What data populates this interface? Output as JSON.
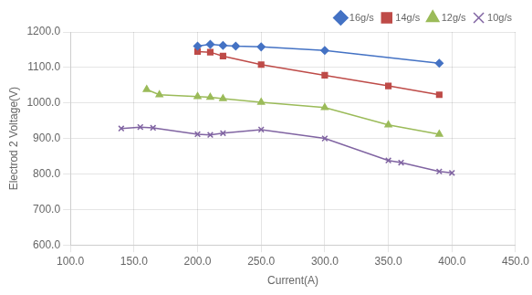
{
  "chart_data": {
    "type": "line",
    "xlabel": "Current(A)",
    "ylabel": "Electrod 2 Voltage(V)",
    "series": [
      {
        "name": "16g/s",
        "color": "#4472C4",
        "marker": "diamond",
        "x": [
          200,
          210,
          220,
          230,
          250,
          300,
          390
        ],
        "values": [
          1160,
          1165,
          1162,
          1160,
          1158,
          1148,
          1112
        ]
      },
      {
        "name": "14g/s",
        "color": "#BE4B48",
        "marker": "square",
        "x": [
          200,
          210,
          220,
          250,
          300,
          350,
          390
        ],
        "values": [
          1145,
          1143,
          1132,
          1108,
          1078,
          1048,
          1023
        ]
      },
      {
        "name": "12g/s",
        "color": "#9BBB59",
        "marker": "triangle",
        "x": [
          160,
          170,
          200,
          210,
          220,
          250,
          300,
          350,
          390
        ],
        "values": [
          1038,
          1023,
          1018,
          1016,
          1012,
          1002,
          987,
          938,
          912
        ]
      },
      {
        "name": "10g/s",
        "color": "#8064A2",
        "marker": "x",
        "x": [
          140,
          155,
          165,
          200,
          210,
          220,
          250,
          300,
          350,
          360,
          390,
          400
        ],
        "values": [
          928,
          932,
          930,
          912,
          910,
          915,
          925,
          900,
          838,
          832,
          807,
          803
        ]
      }
    ],
    "xlim": [
      100,
      450
    ],
    "ylim": [
      600,
      1200
    ],
    "xticks": [
      {
        "value": 100,
        "label": "100.0"
      },
      {
        "value": 150,
        "label": "150.0"
      },
      {
        "value": 200,
        "label": "200.0"
      },
      {
        "value": 250,
        "label": "250.0"
      },
      {
        "value": 300,
        "label": "300.0"
      },
      {
        "value": 350,
        "label": "350.0"
      },
      {
        "value": 400,
        "label": "400.0"
      },
      {
        "value": 450,
        "label": "450.0"
      }
    ],
    "yticks": [
      {
        "value": 600,
        "label": "600.0"
      },
      {
        "value": 700,
        "label": "700.0"
      },
      {
        "value": 800,
        "label": "800.0"
      },
      {
        "value": 900,
        "label": "900.0"
      },
      {
        "value": 1000,
        "label": "1000.0"
      },
      {
        "value": 1100,
        "label": "1100.0"
      },
      {
        "value": 1200,
        "label": "1200.0"
      }
    ],
    "grid": true,
    "legend": "upper right"
  }
}
